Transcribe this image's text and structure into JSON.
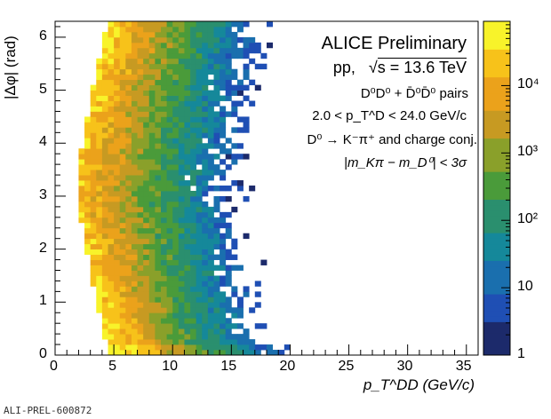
{
  "chart_data": {
    "type": "heatmap",
    "title": "ALICE Preliminary",
    "annotations": {
      "system": "pp,",
      "sqrt_s": "s = 13.6 TeV",
      "pairs": "D⁰D⁰ + D̄⁰D̄⁰ pairs",
      "pt_range": "2.0 < p_T^D < 24.0 GeV/c",
      "decay": "D⁰ → K⁻π⁺ and charge conj.",
      "mass_cut": "|m_Kπ − m_D⁰| < 3σ"
    },
    "xlabel": "p_T^DD (GeV/c)",
    "ylabel": "|Δφ| (rad)",
    "xlim": [
      0,
      36
    ],
    "ylim": [
      0,
      6.3
    ],
    "x_ticks": [
      "0",
      "5",
      "10",
      "15",
      "20",
      "25",
      "30",
      "35"
    ],
    "y_ticks": [
      "0",
      "1",
      "2",
      "3",
      "4",
      "5",
      "6"
    ],
    "z_scale": "log",
    "zlim": [
      1,
      90000
    ],
    "colorbar_ticks": [
      "1",
      "10",
      "10²",
      "10³",
      "10⁴"
    ],
    "colormap": [
      "#1c2a6b",
      "#1f4fb4",
      "#1a6fae",
      "#15889a",
      "#2a8f6e",
      "#4a9b3a",
      "#8aa02a",
      "#c79a22",
      "#eba21b",
      "#f7c21a",
      "#f8f32a"
    ],
    "bins": {
      "nx": 72,
      "ny": 63,
      "dx": 0.5,
      "dy": 0.1
    },
    "approx_peak_counts": 80000,
    "approx_ridge_note": "counts concentrated near pT_DD 4–9 and |dphi| ~ 3.14 (back-to-back) and near 0"
  },
  "watermark": "ALI-PREL-600872"
}
